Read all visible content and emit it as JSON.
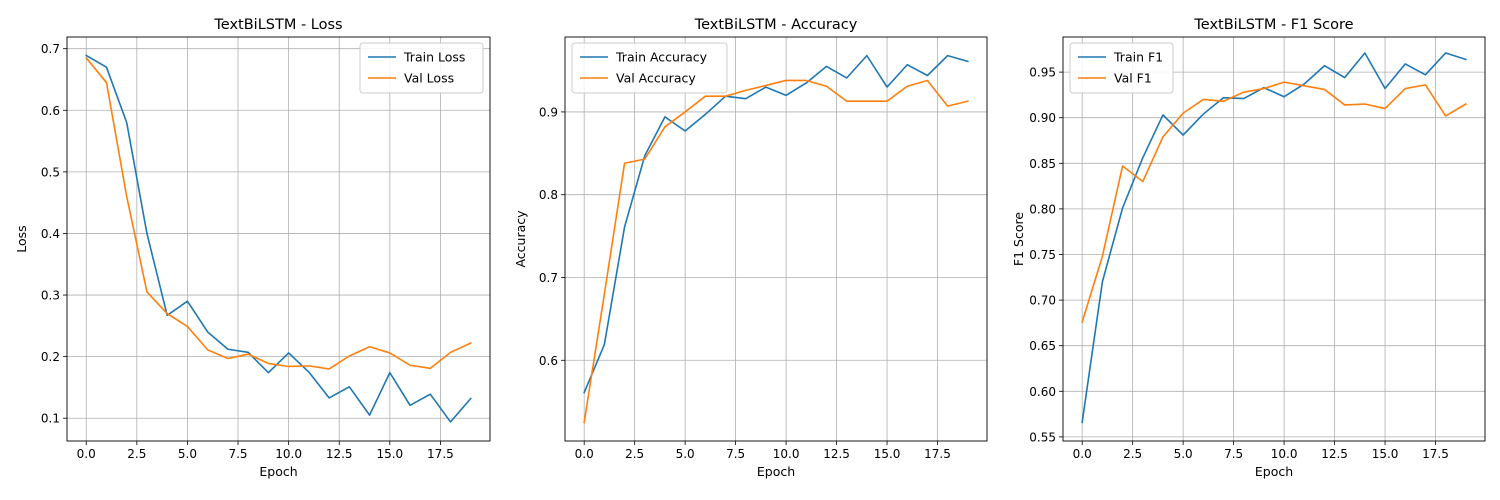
{
  "chart_data": [
    {
      "type": "line",
      "title": "TextBiLSTM - Loss",
      "xlabel": "Epoch",
      "ylabel": "Loss",
      "xlim": [
        -0.95,
        19.95
      ],
      "ylim": [
        0.063,
        0.719
      ],
      "xticks": [
        0.0,
        2.5,
        5.0,
        7.5,
        10.0,
        12.5,
        15.0,
        17.5
      ],
      "xtick_labels": [
        "0.0",
        "2.5",
        "5.0",
        "7.5",
        "10.0",
        "12.5",
        "15.0",
        "17.5"
      ],
      "yticks": [
        0.1,
        0.2,
        0.3,
        0.4,
        0.5,
        0.6,
        0.7
      ],
      "ytick_labels": [
        "0.1",
        "0.2",
        "0.3",
        "0.4",
        "0.5",
        "0.6",
        "0.7"
      ],
      "grid": true,
      "legend": "upper-right",
      "x": [
        0,
        1,
        2,
        3,
        4,
        5,
        6,
        7,
        8,
        9,
        10,
        11,
        12,
        13,
        14,
        15,
        16,
        17,
        18,
        19
      ],
      "series": [
        {
          "name": "Train Loss",
          "color": "#1f77b4",
          "values": [
            0.689,
            0.67,
            0.58,
            0.4,
            0.267,
            0.29,
            0.24,
            0.212,
            0.207,
            0.174,
            0.206,
            0.175,
            0.133,
            0.151,
            0.105,
            0.174,
            0.121,
            0.139,
            0.094,
            0.132
          ]
        },
        {
          "name": "Val Loss",
          "color": "#ff7f0e",
          "values": [
            0.685,
            0.645,
            0.46,
            0.305,
            0.27,
            0.249,
            0.211,
            0.197,
            0.204,
            0.189,
            0.184,
            0.185,
            0.18,
            0.201,
            0.216,
            0.206,
            0.186,
            0.181,
            0.207,
            0.222
          ]
        }
      ]
    },
    {
      "type": "line",
      "title": "TextBiLSTM - Accuracy",
      "xlabel": "Epoch",
      "ylabel": "Accuracy",
      "xlim": [
        -0.95,
        19.95
      ],
      "ylim": [
        0.5025,
        0.9905
      ],
      "xticks": [
        0.0,
        2.5,
        5.0,
        7.5,
        10.0,
        12.5,
        15.0,
        17.5
      ],
      "xtick_labels": [
        "0.0",
        "2.5",
        "5.0",
        "7.5",
        "10.0",
        "12.5",
        "15.0",
        "17.5"
      ],
      "yticks": [
        0.6,
        0.7,
        0.8,
        0.9
      ],
      "ytick_labels": [
        "0.6",
        "0.7",
        "0.8",
        "0.9"
      ],
      "grid": true,
      "legend": "upper-left",
      "x": [
        0,
        1,
        2,
        3,
        4,
        5,
        6,
        7,
        8,
        9,
        10,
        11,
        12,
        13,
        14,
        15,
        16,
        17,
        18,
        19
      ],
      "series": [
        {
          "name": "Train Accuracy",
          "color": "#1f77b4",
          "values": [
            0.561,
            0.619,
            0.761,
            0.847,
            0.894,
            0.877,
            0.897,
            0.919,
            0.916,
            0.93,
            0.92,
            0.935,
            0.955,
            0.941,
            0.968,
            0.93,
            0.957,
            0.944,
            0.968,
            0.961
          ]
        },
        {
          "name": "Val Accuracy",
          "color": "#ff7f0e",
          "values": [
            0.525,
            0.68,
            0.838,
            0.843,
            0.882,
            0.9,
            0.919,
            0.919,
            0.926,
            0.932,
            0.938,
            0.938,
            0.931,
            0.913,
            0.913,
            0.913,
            0.931,
            0.938,
            0.907,
            0.913
          ]
        }
      ]
    },
    {
      "type": "line",
      "title": "TextBiLSTM - F1 Score",
      "xlabel": "Epoch",
      "ylabel": "F1 Score",
      "xlim": [
        -0.95,
        19.95
      ],
      "ylim": [
        0.5455,
        0.9885
      ],
      "xticks": [
        0.0,
        2.5,
        5.0,
        7.5,
        10.0,
        12.5,
        15.0,
        17.5
      ],
      "xtick_labels": [
        "0.0",
        "2.5",
        "5.0",
        "7.5",
        "10.0",
        "12.5",
        "15.0",
        "17.5"
      ],
      "yticks": [
        0.55,
        0.6,
        0.65,
        0.7,
        0.75,
        0.8,
        0.85,
        0.9,
        0.95
      ],
      "ytick_labels": [
        "0.55",
        "0.60",
        "0.65",
        "0.70",
        "0.75",
        "0.80",
        "0.85",
        "0.90",
        "0.95"
      ],
      "grid": true,
      "legend": "upper-left",
      "x": [
        0,
        1,
        2,
        3,
        4,
        5,
        6,
        7,
        8,
        9,
        10,
        11,
        12,
        13,
        14,
        15,
        16,
        17,
        18,
        19
      ],
      "series": [
        {
          "name": "Train F1",
          "color": "#1f77b4",
          "values": [
            0.566,
            0.72,
            0.801,
            0.856,
            0.903,
            0.881,
            0.904,
            0.922,
            0.921,
            0.933,
            0.923,
            0.937,
            0.957,
            0.944,
            0.971,
            0.932,
            0.959,
            0.947,
            0.971,
            0.964
          ]
        },
        {
          "name": "Val F1",
          "color": "#ff7f0e",
          "values": [
            0.676,
            0.748,
            0.847,
            0.83,
            0.879,
            0.905,
            0.92,
            0.918,
            0.928,
            0.932,
            0.939,
            0.935,
            0.931,
            0.914,
            0.915,
            0.91,
            0.932,
            0.936,
            0.902,
            0.915
          ]
        }
      ]
    }
  ]
}
